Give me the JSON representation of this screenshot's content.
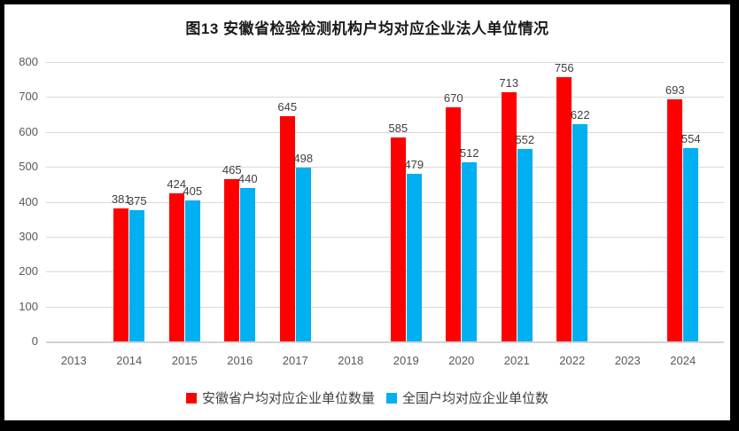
{
  "chart_data": {
    "type": "bar",
    "title": "图13 安徽省检验检测机构户均对应企业法人单位情况",
    "categories": [
      "2013",
      "2014",
      "2015",
      "2016",
      "2017",
      "2018",
      "2019",
      "2020",
      "2021",
      "2022",
      "2023",
      "2024"
    ],
    "series": [
      {
        "name": "安徽省户均对应企业单位数量",
        "color": "#FF0000",
        "values": [
          null,
          381,
          424,
          465,
          645,
          null,
          585,
          670,
          713,
          756,
          null,
          693
        ]
      },
      {
        "name": "全国户均对应企业单位数",
        "color": "#00B0F0",
        "values": [
          null,
          375,
          405,
          440,
          498,
          null,
          479,
          512,
          552,
          622,
          null,
          554
        ]
      }
    ],
    "ylim": [
      0,
      800
    ],
    "yticks": [
      0,
      100,
      200,
      300,
      400,
      500,
      600,
      700,
      800
    ],
    "grid": "horizontal",
    "data_labels": true,
    "legend_position": "bottom",
    "colors": {
      "gridline": "#D9D9D9",
      "axis_text": "#595959",
      "data_label_text": "#3f3f3f",
      "frame_border": "#000000",
      "plot_background": "#FFFFFF"
    }
  }
}
